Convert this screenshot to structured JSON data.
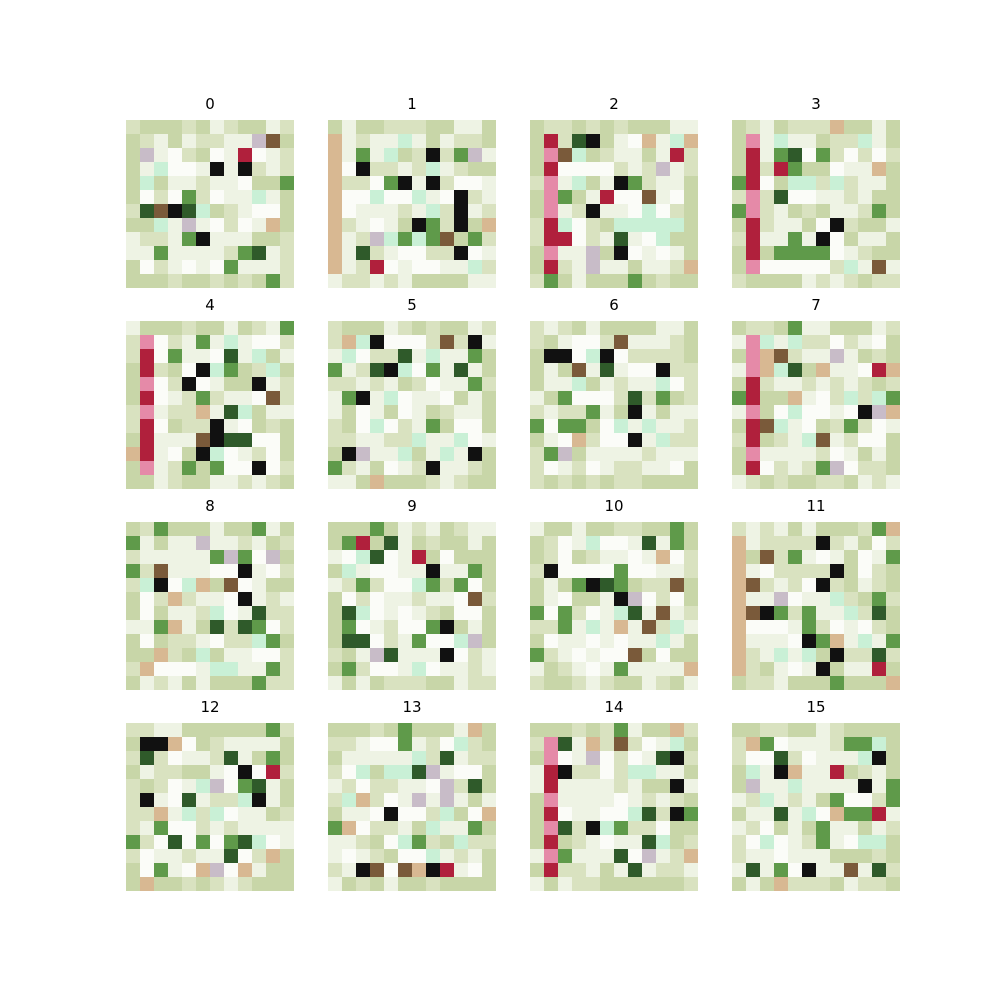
{
  "figure": {
    "panels": [
      {
        "title": "0"
      },
      {
        "title": "1"
      },
      {
        "title": "2"
      },
      {
        "title": "3"
      },
      {
        "title": "4"
      },
      {
        "title": "5"
      },
      {
        "title": "6"
      },
      {
        "title": "7"
      },
      {
        "title": "8"
      },
      {
        "title": "9"
      },
      {
        "title": "10"
      },
      {
        "title": "11"
      },
      {
        "title": "12"
      },
      {
        "title": "13"
      },
      {
        "title": "14"
      },
      {
        "title": "15"
      }
    ],
    "palette": {
      "background": "#d9e2c0",
      "light_green": "#c8d6a8",
      "pale": "#eef3e4",
      "white": "#fbfcf8",
      "mint": "#c9f0d6",
      "green": "#5f9a4a",
      "dark_green": "#2f5a2a",
      "black": "#111111",
      "pink": "#e58aa8",
      "crimson": "#b0203c",
      "tan": "#d8b892",
      "brown": "#7a5a3a",
      "lavender": "#c8bcc8"
    }
  }
}
